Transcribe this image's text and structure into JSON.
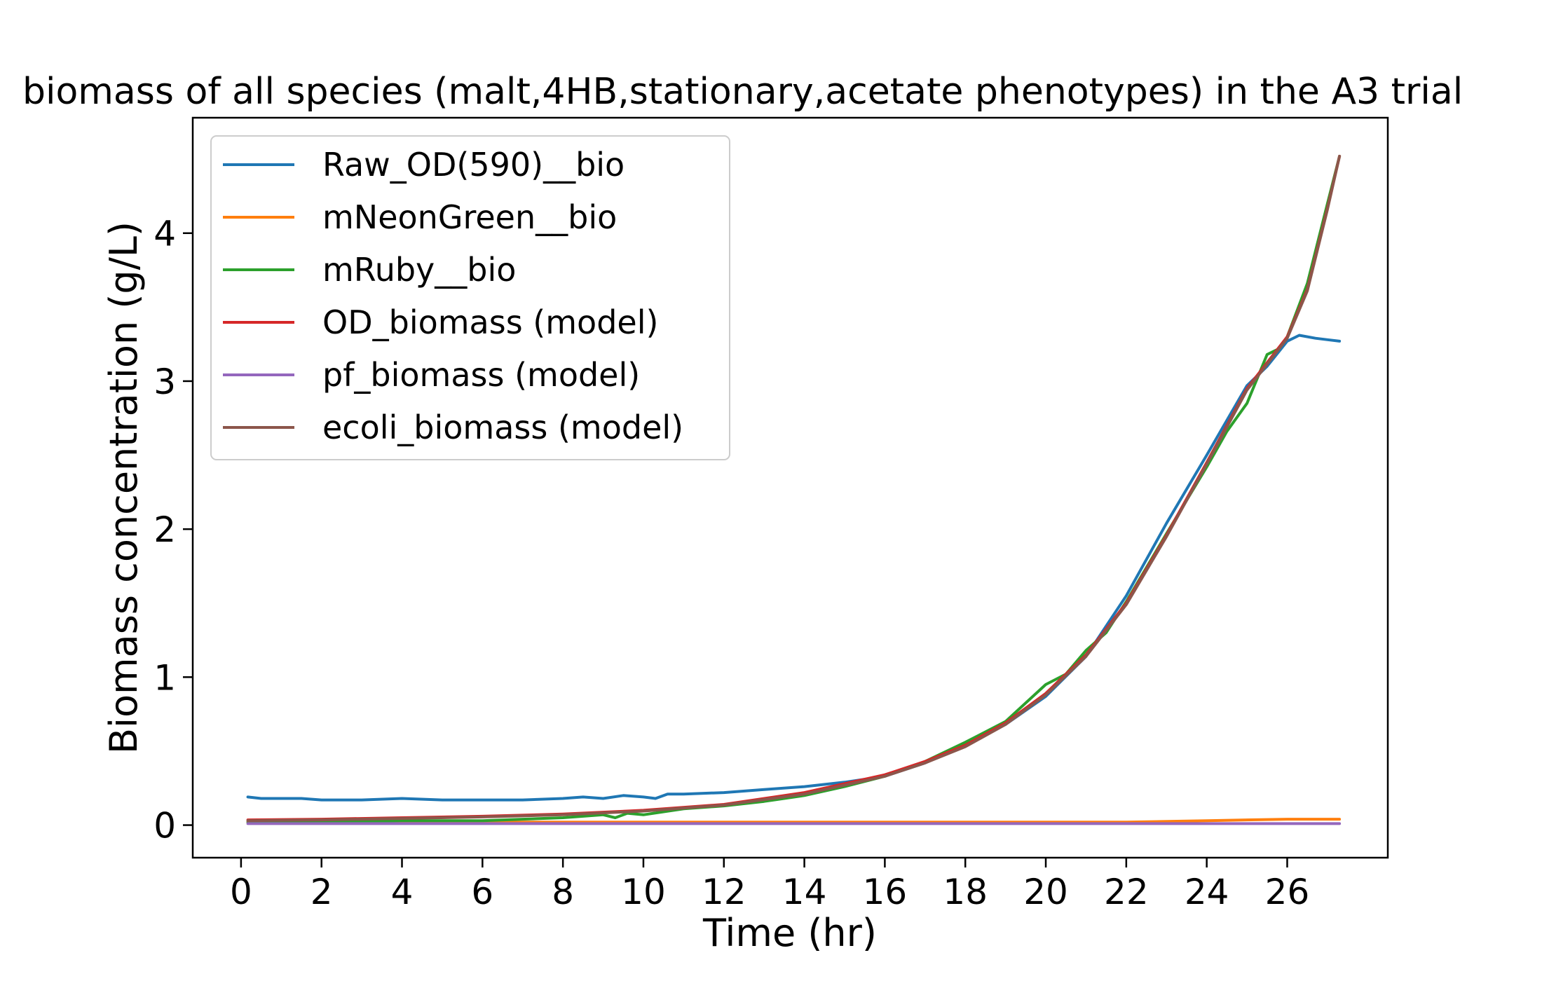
{
  "chart_data": {
    "type": "line",
    "title": "biomass of all species (malt,4HB,stationary,acetate phenotypes) in the A3 trial",
    "xlabel": "Time (hr)",
    "ylabel": "Biomass concentration (g/L)",
    "xlim": [
      -1.2,
      28.5
    ],
    "ylim": [
      -0.22,
      4.78
    ],
    "xticks": [
      0,
      2,
      4,
      6,
      8,
      10,
      12,
      14,
      16,
      18,
      20,
      22,
      24,
      26
    ],
    "xtick_labels": [
      "0",
      "2",
      "4",
      "6",
      "8",
      "10",
      "12",
      "14",
      "16",
      "18",
      "20",
      "22",
      "24",
      "26"
    ],
    "yticks": [
      0,
      1,
      2,
      3,
      4
    ],
    "ytick_labels": [
      "0",
      "1",
      "2",
      "3",
      "4"
    ],
    "grid": false,
    "legend_position": "top-left",
    "series": [
      {
        "name": "Raw_OD(590)__bio",
        "color": "#1f77b4",
        "x": [
          0.17,
          0.5,
          1,
          1.5,
          2,
          3,
          4,
          5,
          6,
          7,
          8,
          8.5,
          9,
          9.5,
          10,
          10.3,
          10.6,
          11,
          12,
          13,
          14,
          15,
          16,
          17,
          18,
          19,
          20,
          21,
          22,
          23,
          24,
          25,
          25.5,
          26,
          26.3,
          26.7,
          27,
          27.3
        ],
        "y": [
          0.19,
          0.18,
          0.18,
          0.18,
          0.17,
          0.17,
          0.18,
          0.17,
          0.17,
          0.17,
          0.18,
          0.19,
          0.18,
          0.2,
          0.19,
          0.18,
          0.21,
          0.21,
          0.22,
          0.24,
          0.26,
          0.29,
          0.33,
          0.42,
          0.54,
          0.68,
          0.87,
          1.14,
          1.55,
          2.04,
          2.5,
          2.97,
          3.1,
          3.27,
          3.31,
          3.29,
          3.28,
          3.27
        ]
      },
      {
        "name": "mNeonGreen__bio",
        "color": "#ff7f0e",
        "x": [
          0.17,
          4,
          8,
          12,
          16,
          20,
          22,
          24,
          26,
          27.3
        ],
        "y": [
          0.02,
          0.02,
          0.02,
          0.02,
          0.02,
          0.02,
          0.02,
          0.03,
          0.04,
          0.04
        ]
      },
      {
        "name": "mRuby__bio",
        "color": "#2ca02c",
        "x": [
          0.17,
          2,
          4,
          6,
          7,
          8,
          8.5,
          9,
          9.3,
          9.6,
          10,
          10.5,
          11,
          12,
          13,
          14,
          15,
          16,
          17,
          18,
          19,
          20,
          20.5,
          21,
          21.5,
          22,
          23,
          24,
          24.5,
          25,
          25.5,
          25.8,
          26,
          26.5,
          27,
          27.3
        ],
        "y": [
          0.02,
          0.02,
          0.03,
          0.03,
          0.04,
          0.05,
          0.06,
          0.07,
          0.05,
          0.08,
          0.07,
          0.09,
          0.11,
          0.13,
          0.16,
          0.2,
          0.26,
          0.33,
          0.43,
          0.56,
          0.7,
          0.95,
          1.02,
          1.18,
          1.3,
          1.51,
          1.97,
          2.42,
          2.66,
          2.85,
          3.18,
          3.22,
          3.3,
          3.66,
          4.2,
          4.52
        ]
      },
      {
        "name": "OD_biomass (model)",
        "color": "#d62728",
        "x": [
          0.17,
          2,
          4,
          6,
          8,
          10,
          12,
          14,
          16,
          17,
          18,
          19,
          20,
          21,
          22,
          23,
          24,
          25,
          26,
          26.5,
          27,
          27.3
        ],
        "y": [
          0.035,
          0.04,
          0.05,
          0.06,
          0.075,
          0.1,
          0.14,
          0.22,
          0.34,
          0.43,
          0.54,
          0.69,
          0.89,
          1.15,
          1.5,
          1.96,
          2.45,
          2.95,
          3.3,
          3.62,
          4.17,
          4.52
        ]
      },
      {
        "name": "pf_biomass (model)",
        "color": "#9467bd",
        "x": [
          0.17,
          5,
          10,
          15,
          20,
          25,
          27.3
        ],
        "y": [
          0.01,
          0.01,
          0.01,
          0.01,
          0.01,
          0.01,
          0.01
        ]
      },
      {
        "name": "ecoli_biomass (model)",
        "color": "#8c564b",
        "x": [
          0.17,
          2,
          4,
          6,
          8,
          10,
          12,
          14,
          16,
          17,
          18,
          19,
          20,
          21,
          22,
          23,
          24,
          25,
          26,
          26.5,
          27,
          27.3
        ],
        "y": [
          0.03,
          0.035,
          0.045,
          0.055,
          0.07,
          0.095,
          0.135,
          0.21,
          0.33,
          0.42,
          0.53,
          0.68,
          0.88,
          1.14,
          1.49,
          1.95,
          2.44,
          2.94,
          3.29,
          3.61,
          4.16,
          4.52
        ]
      }
    ]
  }
}
